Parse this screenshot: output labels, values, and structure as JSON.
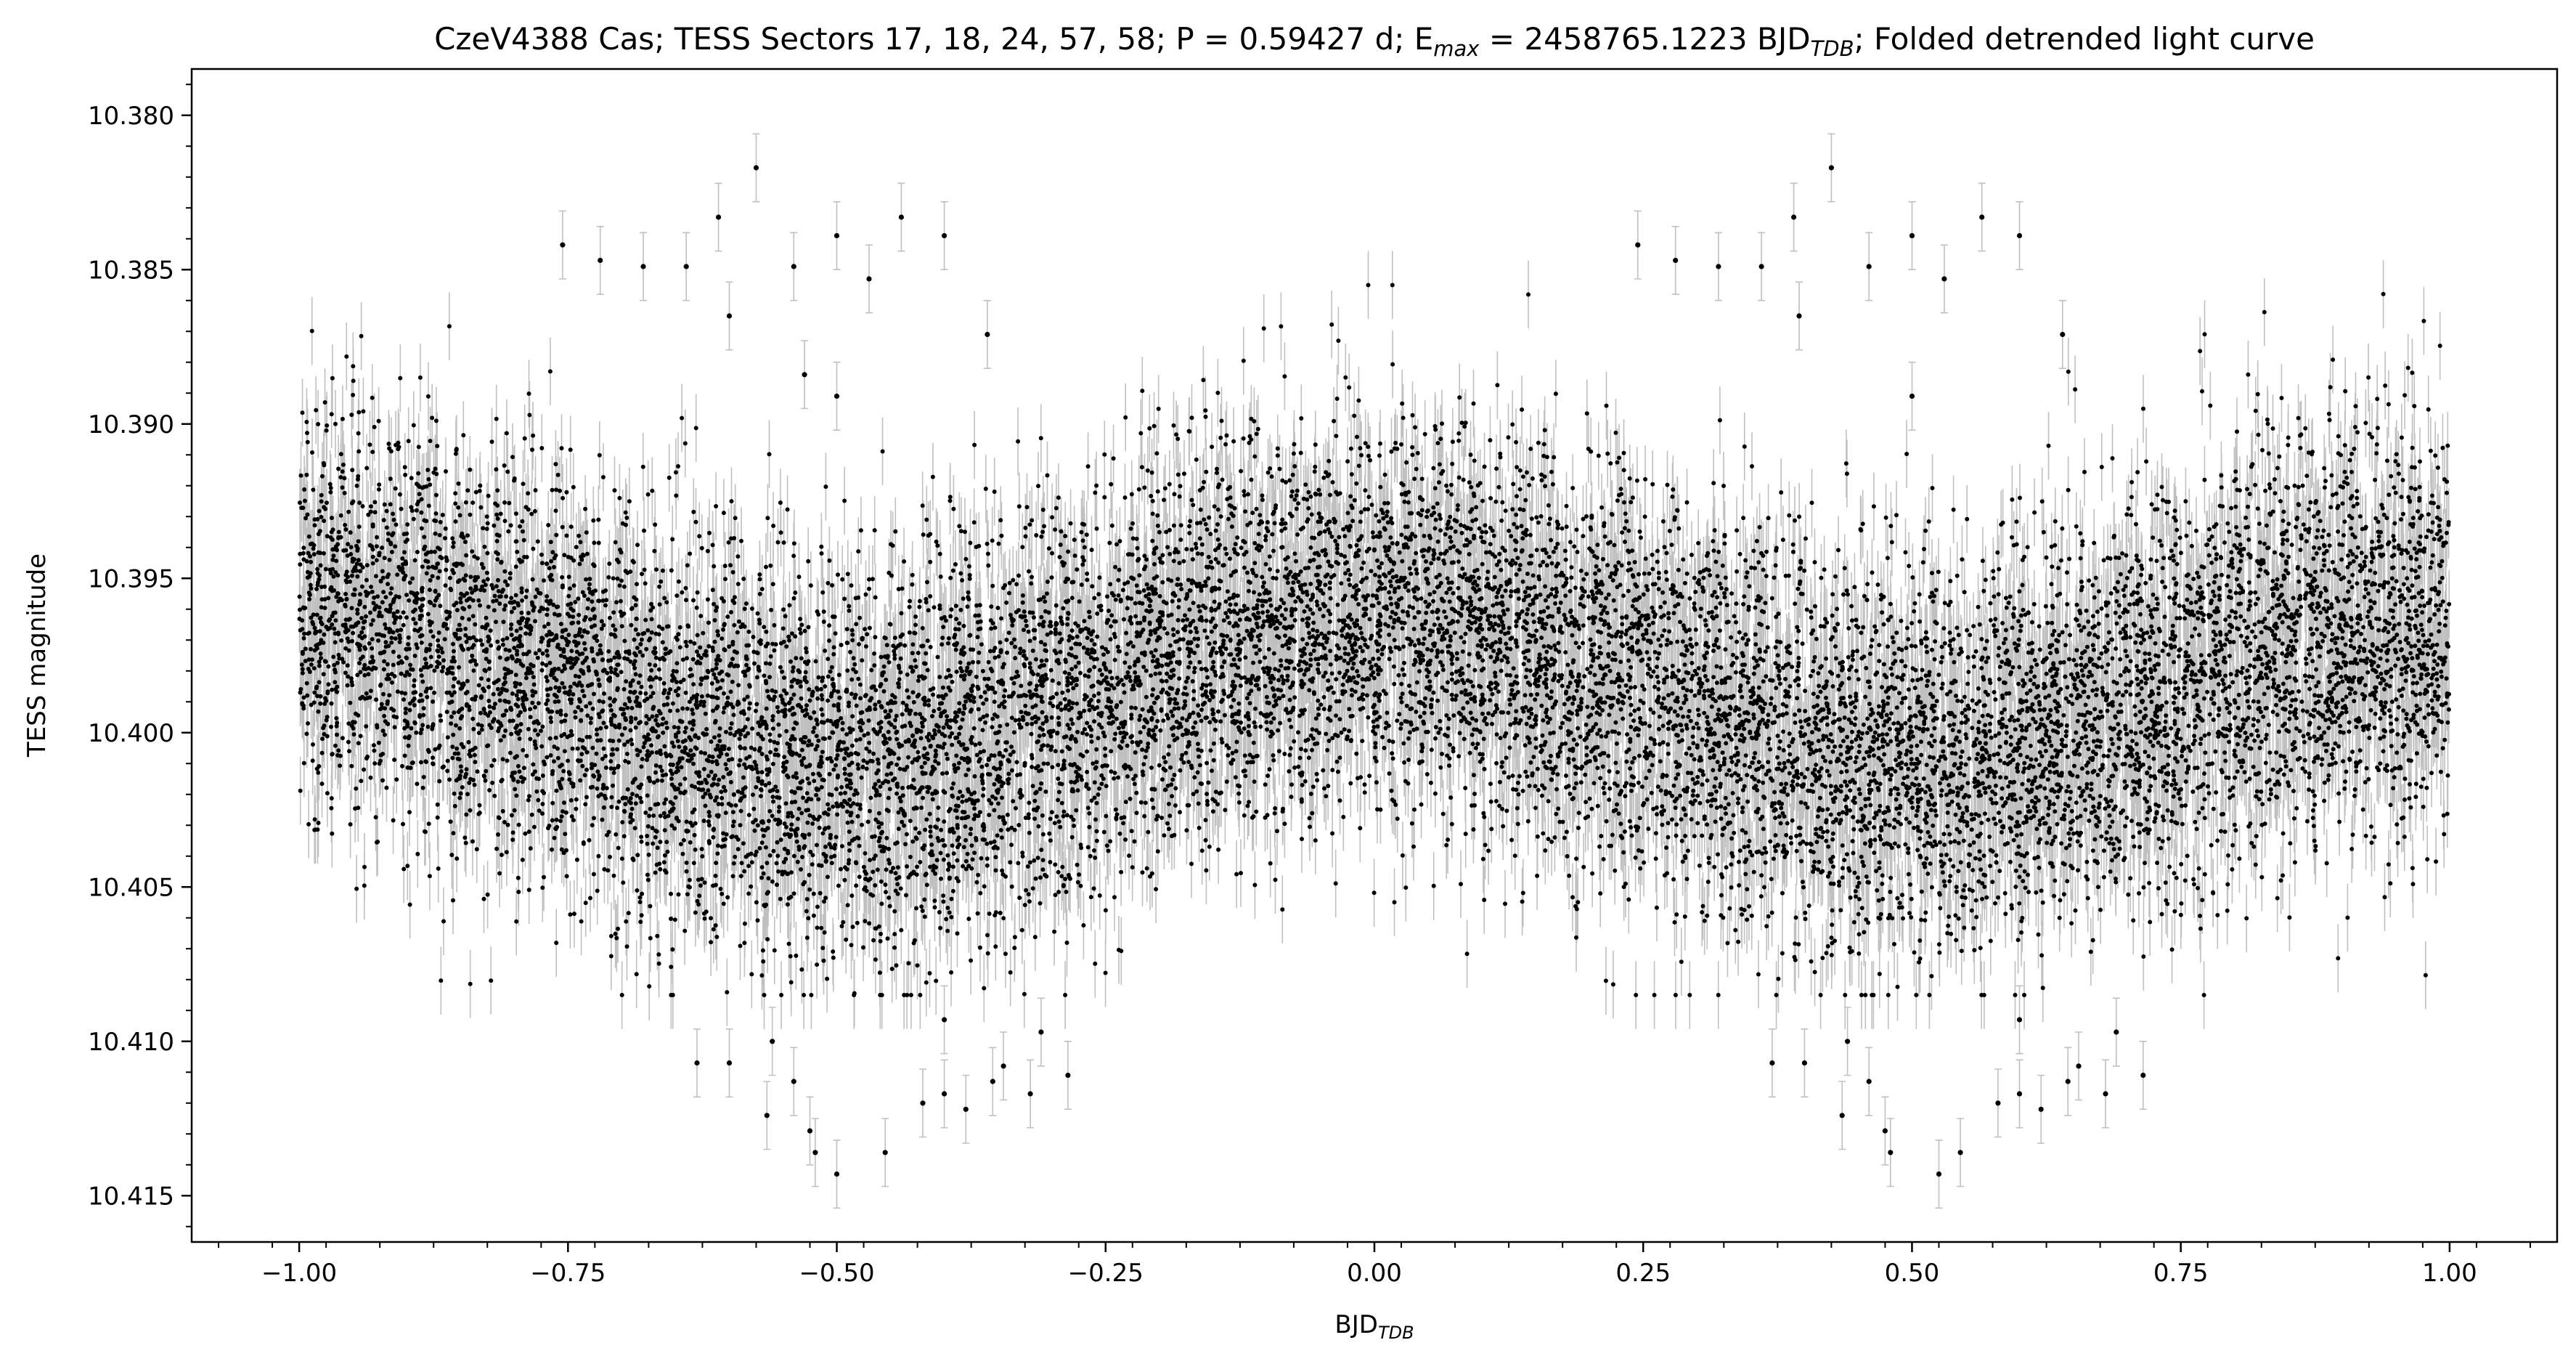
{
  "chart_data": {
    "type": "scatter",
    "title": {
      "prefix": "CzeV4388 Cas; TESS Sectors 17, 18, 24, 57, 58; P = 0.59427 d; E",
      "sub1": "max",
      "middle": " = 2458765.1223 BJD",
      "sub2": "TDB",
      "suffix": "; Folded detrended light curve"
    },
    "xlabel": {
      "main": "BJD",
      "sub": "TDB"
    },
    "ylabel": "TESS magnitude",
    "xlim": [
      -1.1,
      1.1
    ],
    "ylim": [
      10.4165,
      10.3785
    ],
    "y_inverted": true,
    "xticks": [
      -1.0,
      -0.75,
      -0.5,
      -0.25,
      0.0,
      0.25,
      0.5,
      0.75,
      1.0
    ],
    "xtick_labels": [
      "−1.00",
      "−0.75",
      "−0.50",
      "−0.25",
      "0.00",
      "0.25",
      "0.50",
      "0.75",
      "1.00"
    ],
    "yticks": [
      10.38,
      10.385,
      10.39,
      10.395,
      10.4,
      10.405,
      10.41,
      10.415
    ],
    "ytick_labels": [
      "10.380",
      "10.385",
      "10.390",
      "10.395",
      "10.400",
      "10.405",
      "10.410",
      "10.415"
    ],
    "grid": false,
    "marker_color": "#000000",
    "errorbar_color": "#c0c0c0",
    "light_curve_model": {
      "phase_range": [
        -1.0,
        1.0
      ],
      "mean_mag": 10.3985,
      "amplitude_mag": 0.0022,
      "max_light_phase": 0.0,
      "scatter_sigma_mag": 0.0032,
      "typical_error_mag": 0.0011
    },
    "outlier_points": [
      {
        "x": -0.575,
        "y": 10.3817
      },
      {
        "x": -0.61,
        "y": 10.3833
      },
      {
        "x": -0.44,
        "y": 10.3833
      },
      {
        "x": -0.5,
        "y": 10.3839
      },
      {
        "x": -0.4,
        "y": 10.3839
      },
      {
        "x": -0.755,
        "y": 10.3842
      },
      {
        "x": -0.72,
        "y": 10.3847
      },
      {
        "x": -0.68,
        "y": 10.3849
      },
      {
        "x": -0.64,
        "y": 10.3849
      },
      {
        "x": -0.54,
        "y": 10.3849
      },
      {
        "x": -0.47,
        "y": 10.3853
      },
      {
        "x": -0.6,
        "y": 10.3865
      },
      {
        "x": -0.36,
        "y": 10.3871
      },
      {
        "x": -0.53,
        "y": 10.3884
      },
      {
        "x": -0.5,
        "y": 10.3891
      },
      {
        "x": -0.63,
        "y": 10.4107
      },
      {
        "x": -0.6,
        "y": 10.4107
      },
      {
        "x": -0.56,
        "y": 10.41
      },
      {
        "x": -0.54,
        "y": 10.4113
      },
      {
        "x": -0.565,
        "y": 10.4124
      },
      {
        "x": -0.525,
        "y": 10.4129
      },
      {
        "x": -0.52,
        "y": 10.4136
      },
      {
        "x": -0.455,
        "y": 10.4136
      },
      {
        "x": -0.5,
        "y": 10.4143
      },
      {
        "x": -0.42,
        "y": 10.412
      },
      {
        "x": -0.4,
        "y": 10.4117
      },
      {
        "x": -0.38,
        "y": 10.4122
      },
      {
        "x": -0.355,
        "y": 10.4113
      },
      {
        "x": -0.32,
        "y": 10.4117
      },
      {
        "x": -0.285,
        "y": 10.4111
      },
      {
        "x": -0.345,
        "y": 10.4108
      },
      {
        "x": -0.31,
        "y": 10.4097
      },
      {
        "x": -0.4,
        "y": 10.4093
      },
      {
        "x": 0.425,
        "y": 10.3817
      },
      {
        "x": 0.39,
        "y": 10.3833
      },
      {
        "x": 0.565,
        "y": 10.3833
      },
      {
        "x": 0.5,
        "y": 10.3839
      },
      {
        "x": 0.6,
        "y": 10.3839
      },
      {
        "x": 0.245,
        "y": 10.3842
      },
      {
        "x": 0.28,
        "y": 10.3847
      },
      {
        "x": 0.32,
        "y": 10.3849
      },
      {
        "x": 0.36,
        "y": 10.3849
      },
      {
        "x": 0.46,
        "y": 10.3849
      },
      {
        "x": 0.53,
        "y": 10.3853
      },
      {
        "x": 0.395,
        "y": 10.3865
      },
      {
        "x": 0.64,
        "y": 10.3871
      },
      {
        "x": 0.5,
        "y": 10.3891
      },
      {
        "x": 0.37,
        "y": 10.4107
      },
      {
        "x": 0.4,
        "y": 10.4107
      },
      {
        "x": 0.44,
        "y": 10.41
      },
      {
        "x": 0.46,
        "y": 10.4113
      },
      {
        "x": 0.435,
        "y": 10.4124
      },
      {
        "x": 0.475,
        "y": 10.4129
      },
      {
        "x": 0.48,
        "y": 10.4136
      },
      {
        "x": 0.545,
        "y": 10.4136
      },
      {
        "x": 0.525,
        "y": 10.4143
      },
      {
        "x": 0.58,
        "y": 10.412
      },
      {
        "x": 0.6,
        "y": 10.4117
      },
      {
        "x": 0.62,
        "y": 10.4122
      },
      {
        "x": 0.645,
        "y": 10.4113
      },
      {
        "x": 0.68,
        "y": 10.4117
      },
      {
        "x": 0.715,
        "y": 10.4111
      },
      {
        "x": 0.655,
        "y": 10.4108
      },
      {
        "x": 0.69,
        "y": 10.4097
      },
      {
        "x": 0.6,
        "y": 10.4093
      }
    ]
  }
}
